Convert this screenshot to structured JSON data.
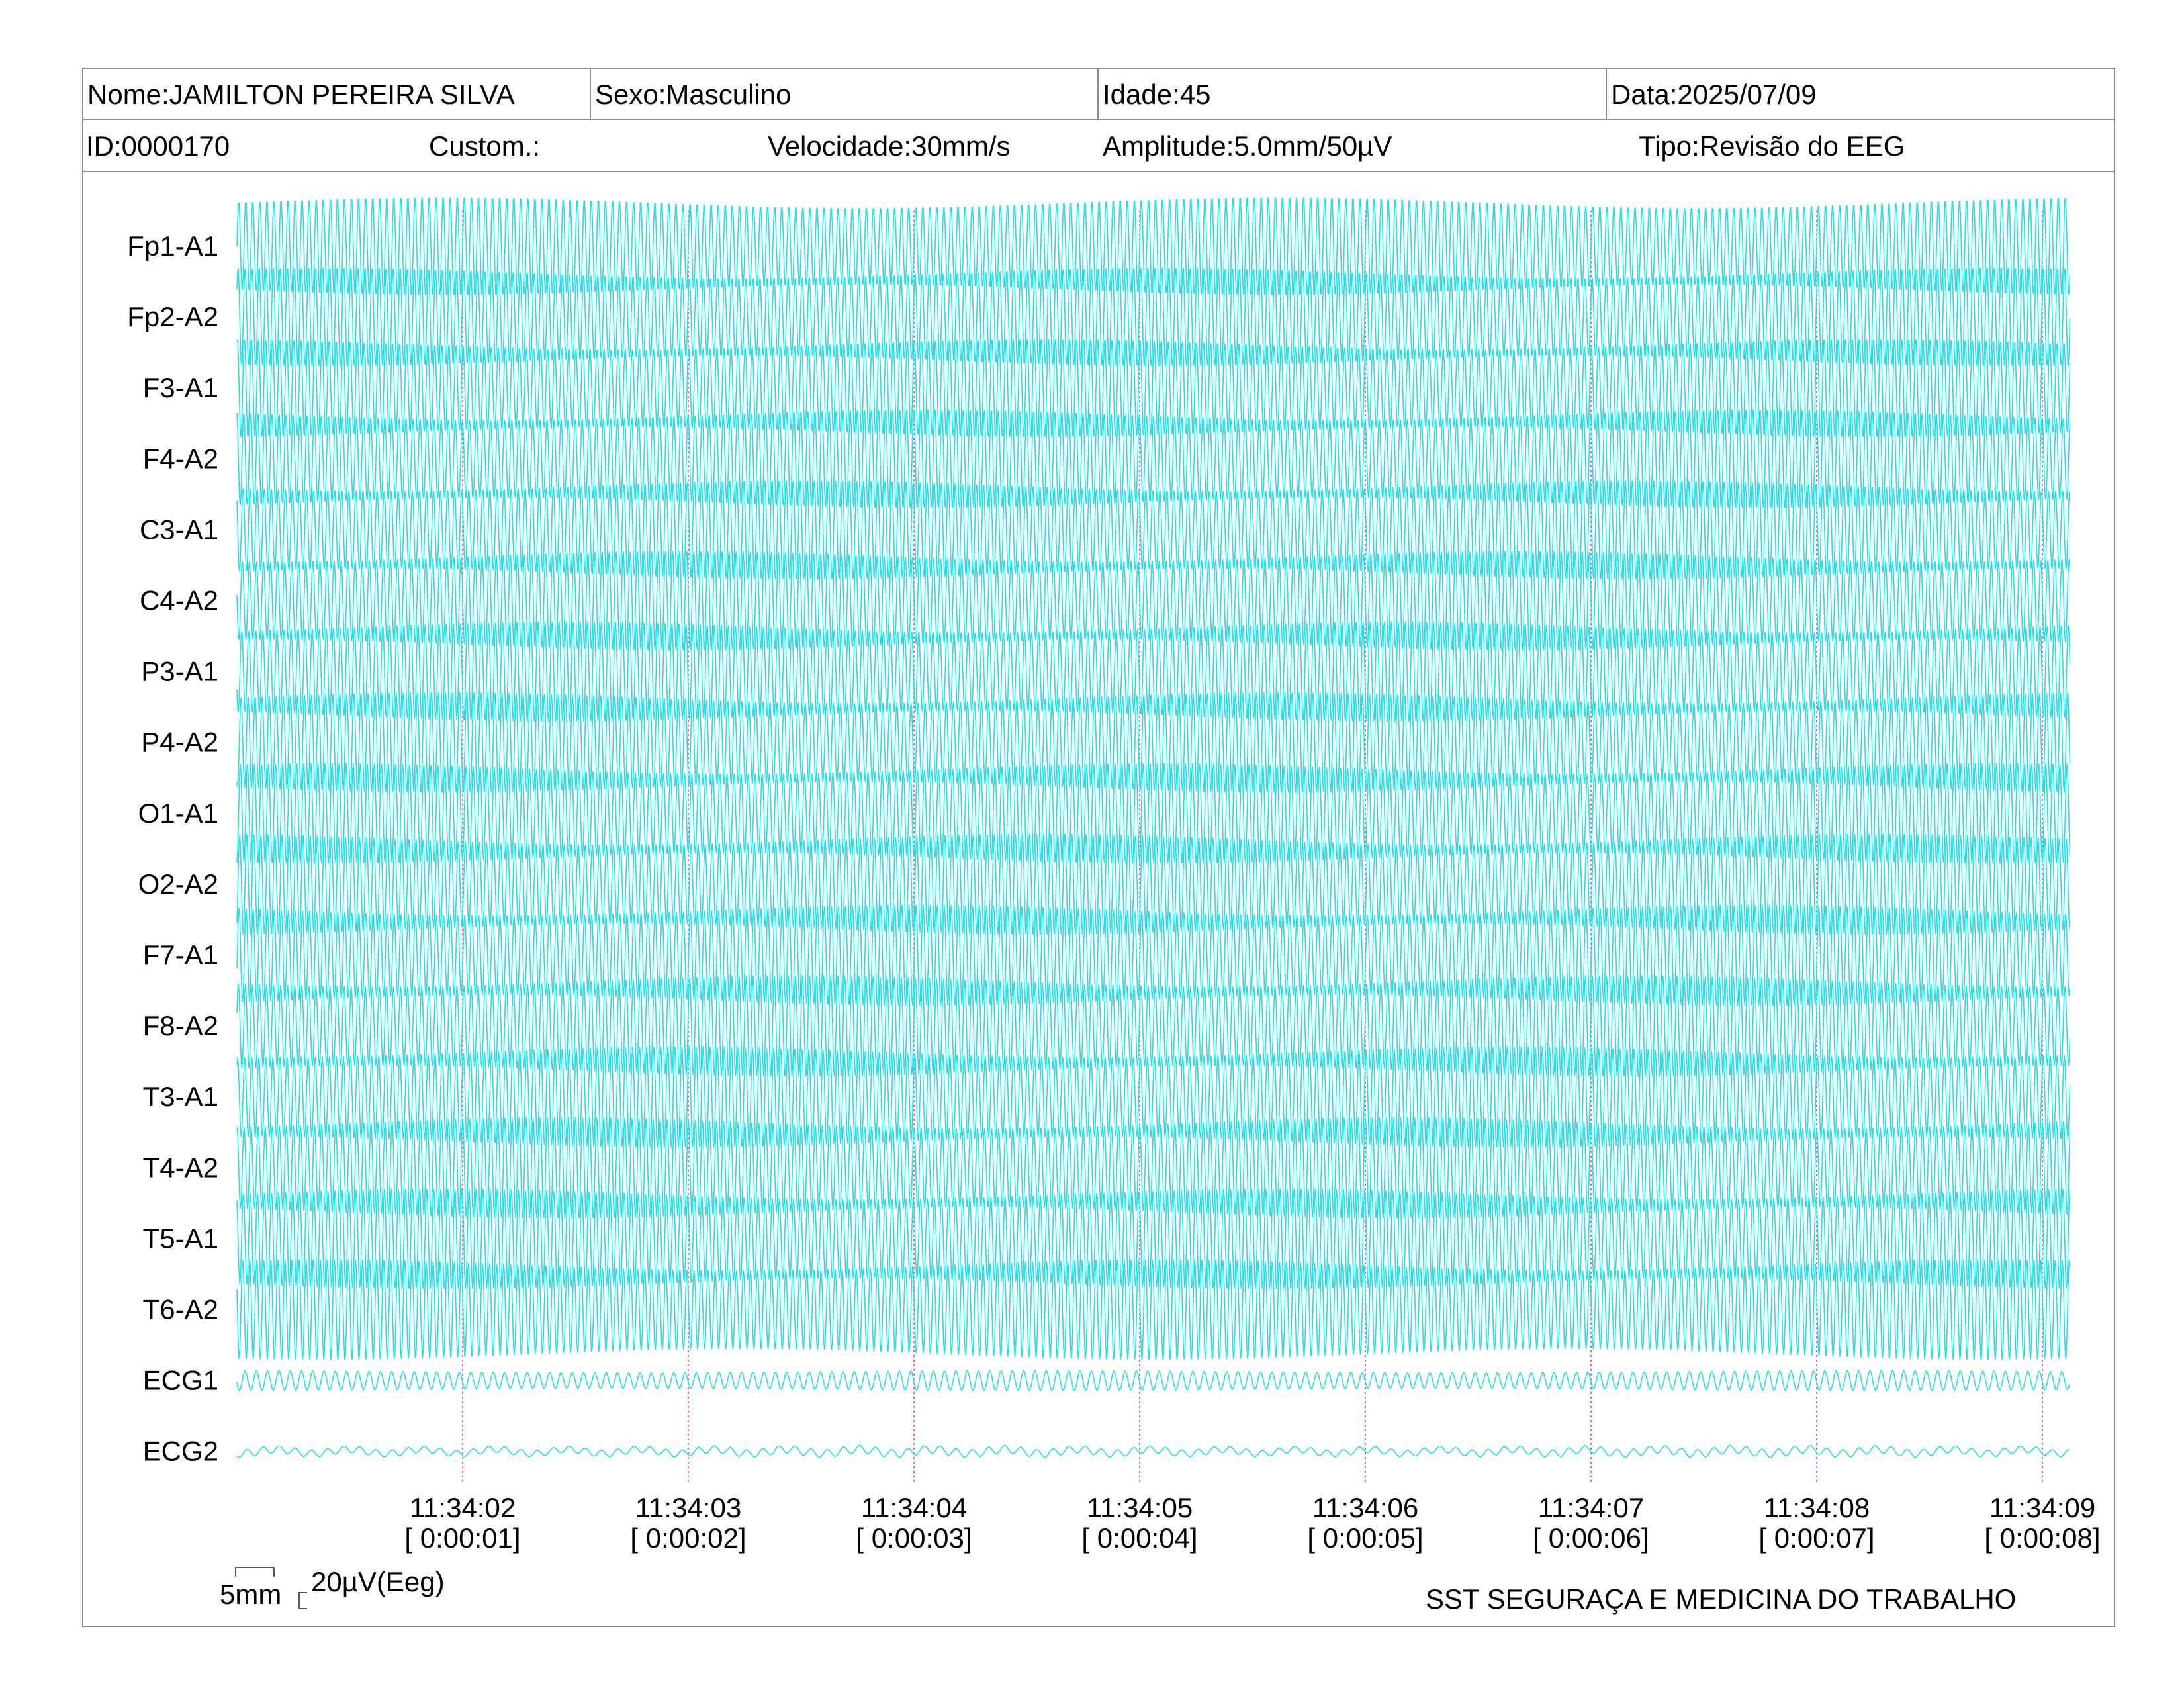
{
  "header": {
    "name": "Nome:JAMILTON PEREIRA SILVA",
    "sex": "Sexo:Masculino",
    "age": "Idade:45",
    "date": "Data:2025/07/09",
    "id": "ID:0000170",
    "custom": "Custom.:",
    "speed": "Velocidade:30mm/s",
    "amplitude": "Amplitude:5.0mm/50µV",
    "type": "Tipo:Revisão do EEG"
  },
  "footer": {
    "scale_mm": "5mm",
    "scale_uv": "20µV(Eeg)",
    "organization": "SST SEGURAÇA E MEDICINA DO TRABALHO"
  },
  "colors": {
    "trace": "#22e0ea",
    "marker": "#e060e0",
    "border": "#8a8a8a"
  },
  "chart_data": {
    "type": "line",
    "title": "",
    "xlabel": "",
    "ylabel": "",
    "x_unit": "seconds",
    "xlim": [
      0,
      8.2
    ],
    "channels": [
      "Fp1-A1",
      "Fp2-A2",
      "F3-A1",
      "F4-A2",
      "C3-A1",
      "C4-A2",
      "P3-A1",
      "P4-A2",
      "O1-A1",
      "O2-A2",
      "F7-A1",
      "F8-A2",
      "T3-A1",
      "T4-A2",
      "T5-A1",
      "T6-A2",
      "ECG1",
      "ECG2"
    ],
    "time_markers": [
      {
        "t": 1,
        "clock": "11:34:02",
        "elapsed": "[ 0:00:01]"
      },
      {
        "t": 2,
        "clock": "11:34:03",
        "elapsed": "[ 0:00:02]"
      },
      {
        "t": 3,
        "clock": "11:34:04",
        "elapsed": "[ 0:00:03]"
      },
      {
        "t": 4,
        "clock": "11:34:05",
        "elapsed": "[ 0:00:04]"
      },
      {
        "t": 5,
        "clock": "11:34:06",
        "elapsed": "[ 0:00:05]"
      },
      {
        "t": 6,
        "clock": "11:34:07",
        "elapsed": "[ 0:00:06]"
      },
      {
        "t": 7,
        "clock": "11:34:08",
        "elapsed": "[ 0:00:07]"
      },
      {
        "t": 8,
        "clock": "11:34:09",
        "elapsed": "[ 0:00:08]"
      }
    ],
    "eeg_frequency_hz": 32,
    "eeg_amplitude_uv": 100,
    "ecg1_amplitude_uv": 20,
    "ecg2_amplitude_uv": 8
  }
}
